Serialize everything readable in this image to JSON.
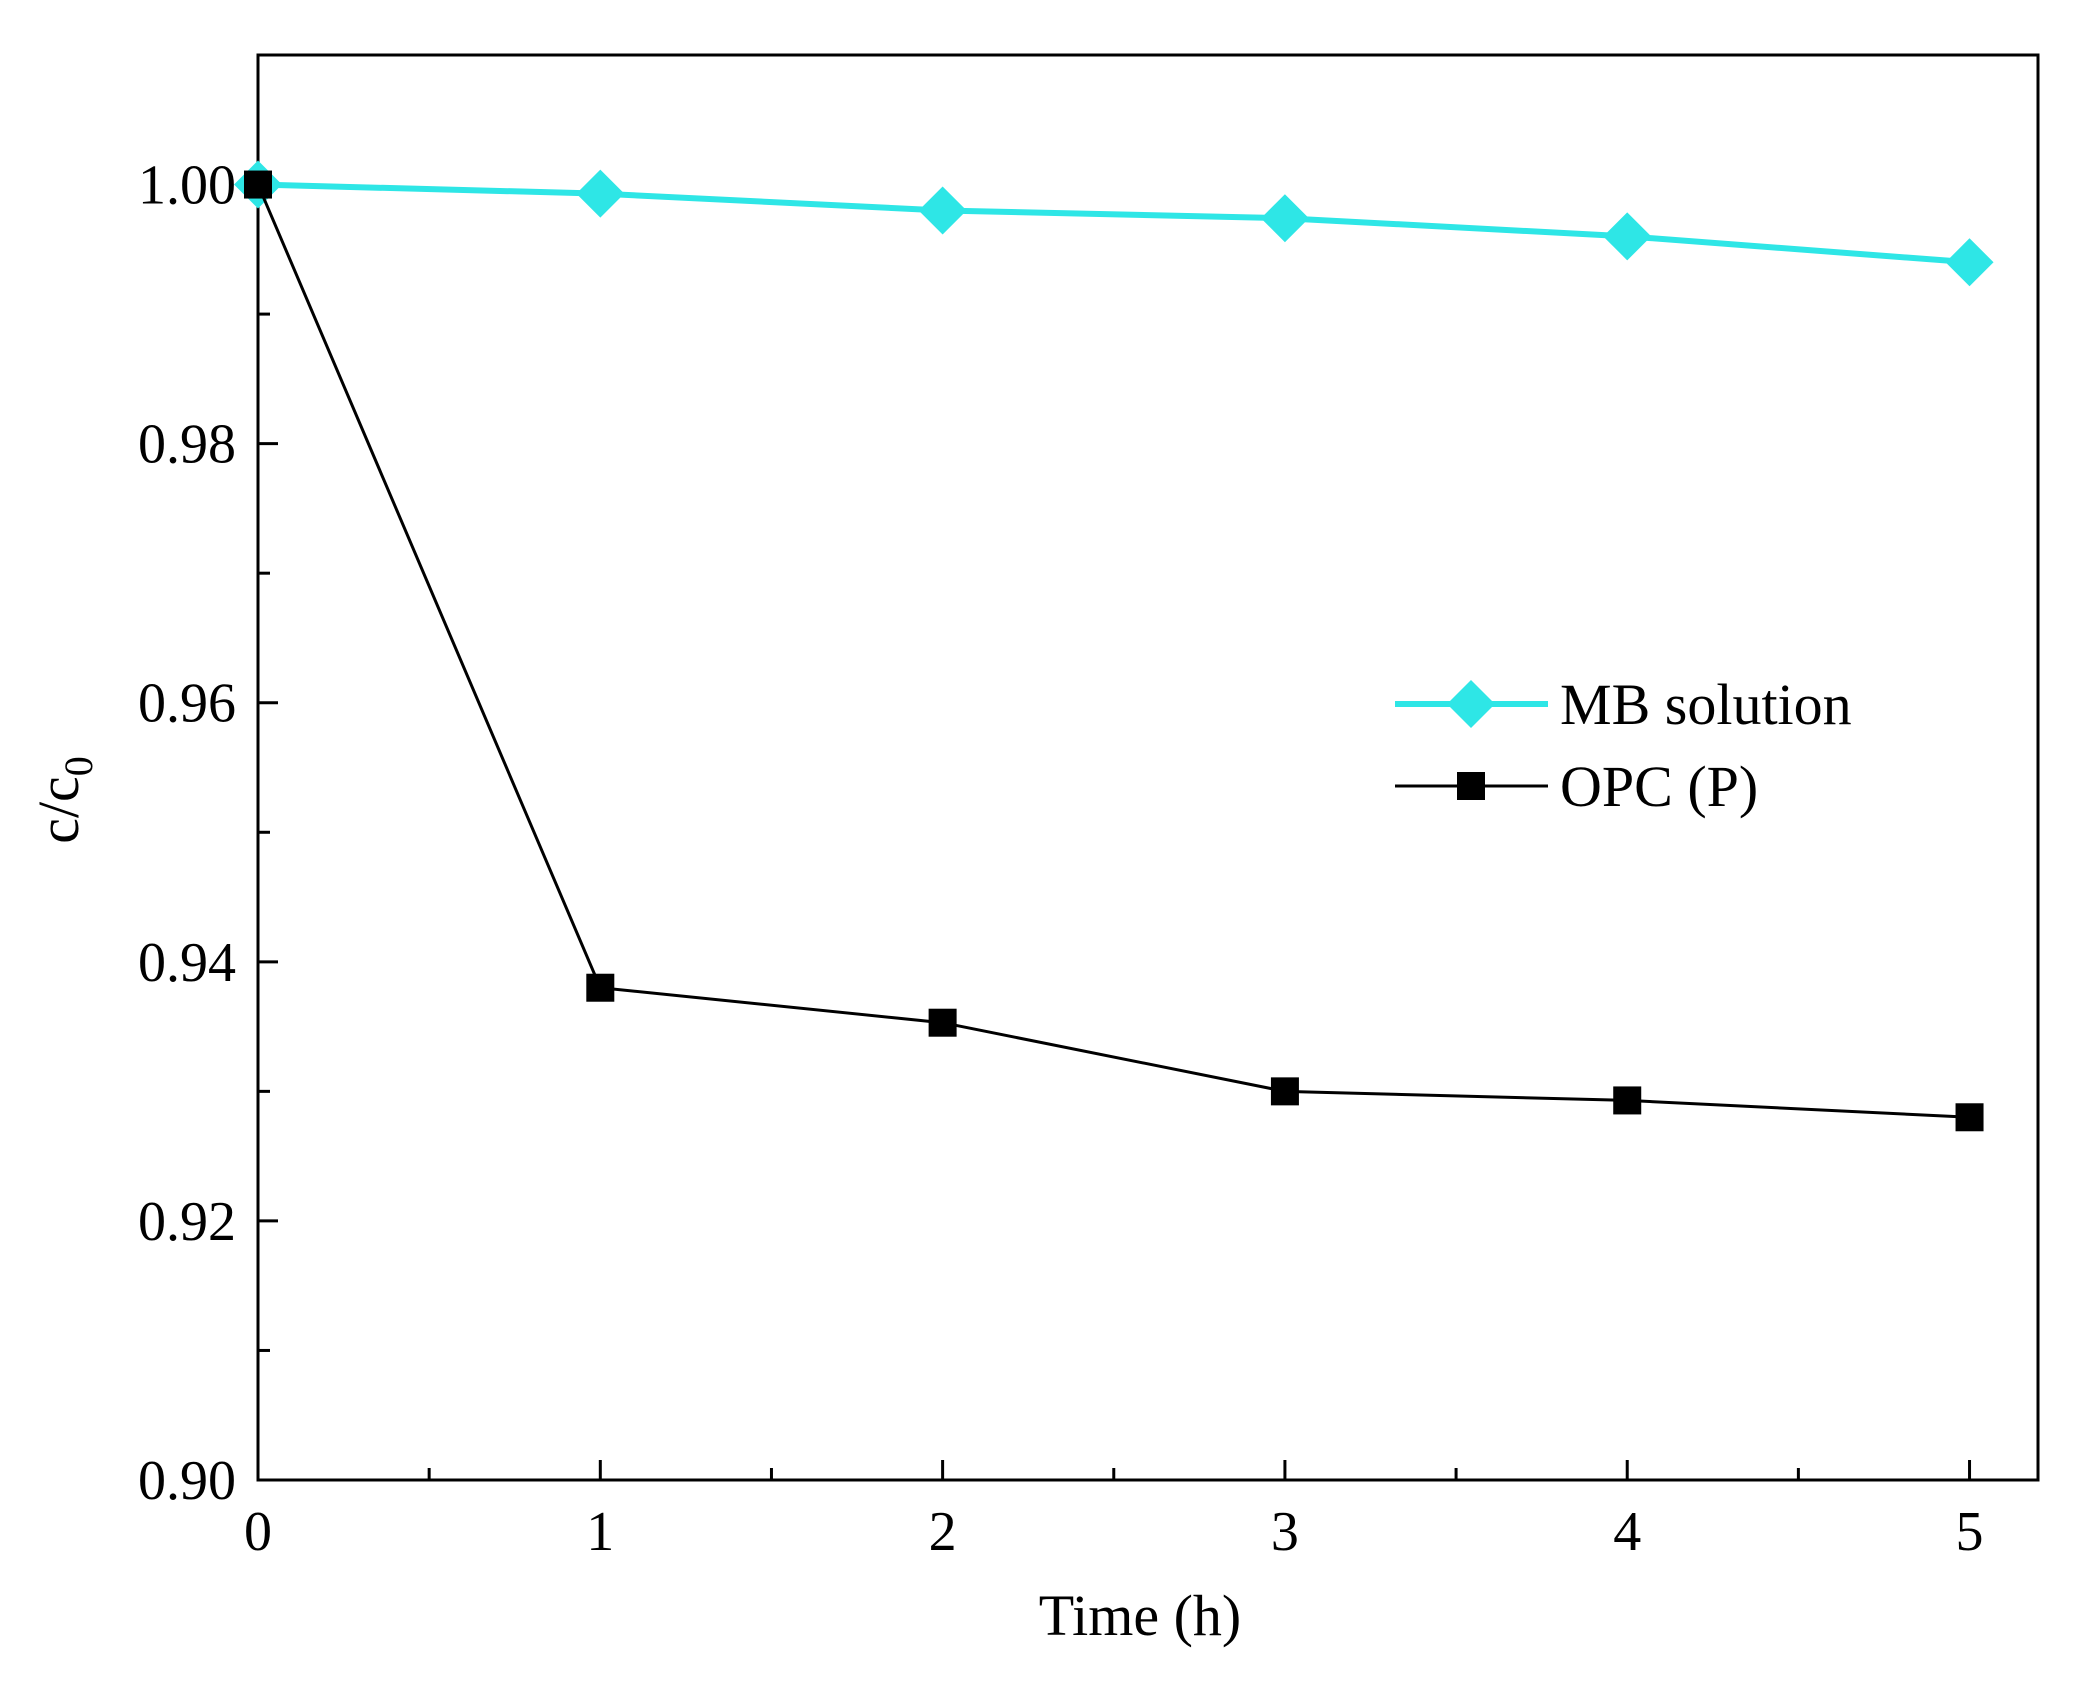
{
  "chart_data": {
    "type": "line",
    "title": "",
    "xlabel": "Time (h)",
    "ylabel": {
      "main": "c/c",
      "sub": "0"
    },
    "xlim": [
      0,
      5.2
    ],
    "ylim": [
      0.9,
      1.01
    ],
    "x_ticks": [
      0,
      1,
      2,
      3,
      4,
      5
    ],
    "x_tick_labels": [
      "0",
      "1",
      "2",
      "3",
      "4",
      "5"
    ],
    "x_minor_ticks": [
      0.5,
      1.5,
      2.5,
      3.5,
      4.5
    ],
    "y_ticks": [
      0.9,
      0.92,
      0.94,
      0.96,
      0.98,
      1.0
    ],
    "y_tick_labels": [
      "0.90",
      "0.92",
      "0.94",
      "0.96",
      "0.98",
      "1.00"
    ],
    "y_minor_ticks": [
      0.91,
      0.93,
      0.95,
      0.97,
      0.99
    ],
    "grid": false,
    "legend_position": "center-right",
    "series": [
      {
        "name": "MB solution",
        "color": "#2EE6E6",
        "marker": "diamond",
        "x": [
          0,
          1,
          2,
          3,
          4,
          5
        ],
        "y": [
          1.0,
          0.9993,
          0.998,
          0.9974,
          0.996,
          0.994
        ]
      },
      {
        "name": "OPC (P)",
        "color": "#000000",
        "marker": "square",
        "x": [
          0,
          1,
          2,
          3,
          4,
          5
        ],
        "y": [
          1.0,
          0.938,
          0.9353,
          0.93,
          0.9293,
          0.928
        ]
      }
    ]
  }
}
